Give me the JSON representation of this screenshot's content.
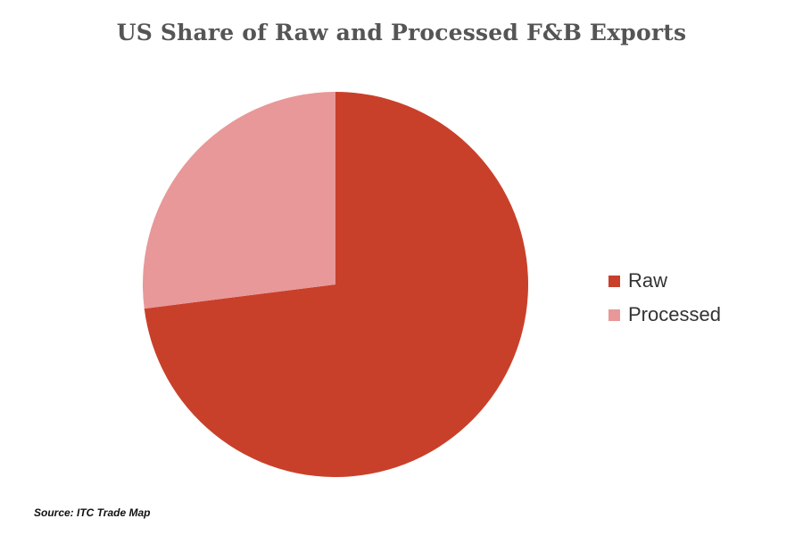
{
  "chart_data": {
    "type": "pie",
    "title": "US Share of Raw and Processed F&B Exports",
    "categories": [
      "Raw",
      "Processed"
    ],
    "values": [
      73,
      27
    ],
    "colors": [
      "#c9402a",
      "#e89898"
    ],
    "start_angle_deg": 0,
    "direction": "clockwise",
    "legend_position": "right"
  },
  "legend": {
    "items": [
      {
        "label": "Raw",
        "color": "#c9402a"
      },
      {
        "label": "Processed",
        "color": "#e89898"
      }
    ]
  },
  "source": "Source: ITC Trade Map"
}
